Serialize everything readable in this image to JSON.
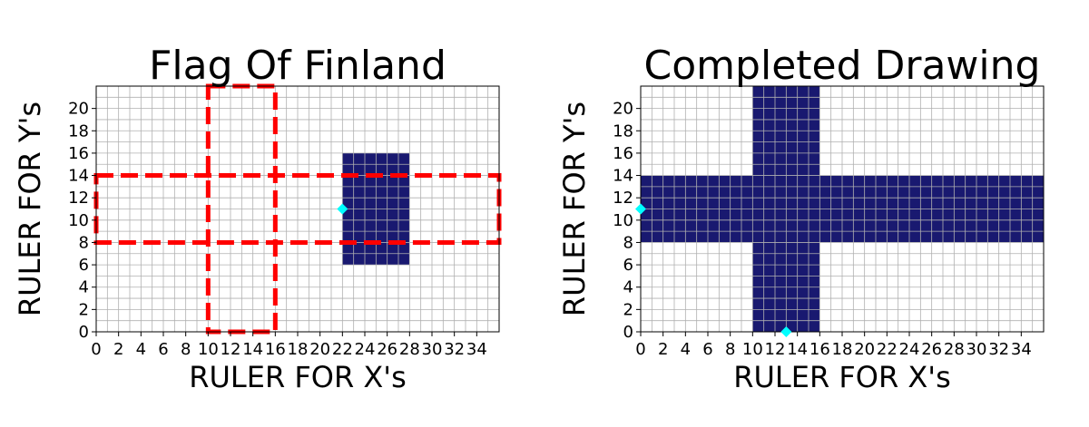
{
  "chart_data": [
    {
      "type": "grid-drawing",
      "title": "Flag Of Finland",
      "xlabel": "RULER FOR X's",
      "ylabel": "RULER FOR Y's",
      "xlim": [
        0,
        36
      ],
      "ylim": [
        0,
        22
      ],
      "xticks": [
        0,
        2,
        4,
        6,
        8,
        10,
        12,
        14,
        16,
        18,
        20,
        22,
        24,
        26,
        28,
        30,
        32,
        34
      ],
      "yticks": [
        0,
        2,
        4,
        6,
        8,
        10,
        12,
        14,
        16,
        18,
        20
      ],
      "grid": true,
      "filled_rects": [
        {
          "x0": 22,
          "x1": 28,
          "y0": 6,
          "y1": 16,
          "color": "#191970"
        }
      ],
      "dashed_rects": [
        {
          "x0": 10,
          "x1": 16,
          "y0": 0,
          "y1": 22,
          "color": "#ff0000"
        },
        {
          "x0": 0,
          "x1": 36,
          "y0": 8,
          "y1": 14,
          "color": "#ff0000"
        }
      ],
      "markers": [
        {
          "x": 22,
          "y": 11,
          "shape": "diamond",
          "color": "#00ffff"
        }
      ]
    },
    {
      "type": "grid-drawing",
      "title": "Completed Drawing",
      "xlabel": "RULER FOR X's",
      "ylabel": "RULER FOR Y's",
      "xlim": [
        0,
        36
      ],
      "ylim": [
        0,
        22
      ],
      "xticks": [
        0,
        2,
        4,
        6,
        8,
        10,
        12,
        14,
        16,
        18,
        20,
        22,
        24,
        26,
        28,
        30,
        32,
        34
      ],
      "yticks": [
        0,
        2,
        4,
        6,
        8,
        10,
        12,
        14,
        16,
        18,
        20
      ],
      "grid": true,
      "filled_rects": [
        {
          "x0": 10,
          "x1": 16,
          "y0": 0,
          "y1": 22,
          "color": "#191970"
        },
        {
          "x0": 0,
          "x1": 36,
          "y0": 8,
          "y1": 14,
          "color": "#191970"
        }
      ],
      "dashed_rects": [],
      "markers": [
        {
          "x": 0,
          "y": 11,
          "shape": "diamond",
          "color": "#00ffff"
        },
        {
          "x": 13,
          "y": 0,
          "shape": "diamond",
          "color": "#00ffff"
        }
      ]
    }
  ]
}
